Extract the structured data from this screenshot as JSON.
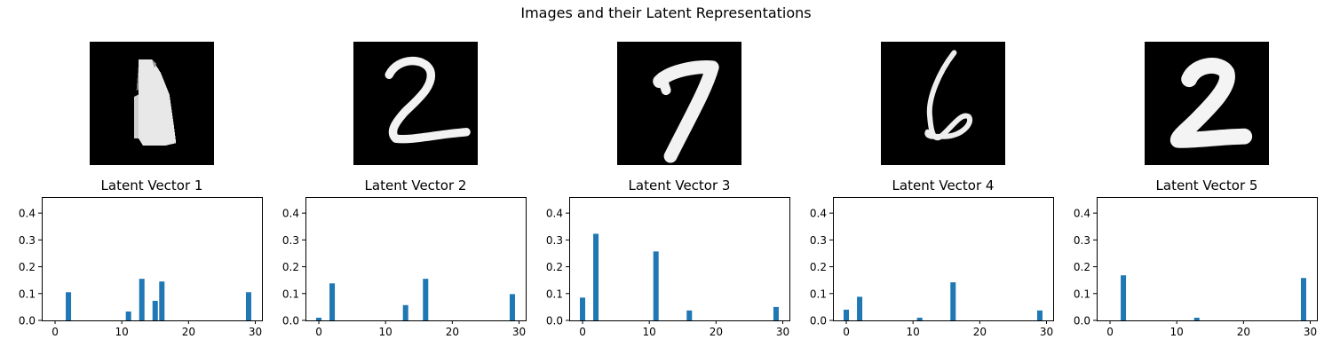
{
  "figure": {
    "title": "Images and their Latent Representations",
    "colors": {
      "bar": "#1f77b4",
      "axis": "#000000",
      "image_bg": "#000000",
      "ink": "#ffffff"
    },
    "images": [
      {
        "name": "digit-image-1",
        "depicts": "1",
        "icon": "digit-1-image"
      },
      {
        "name": "digit-image-2",
        "depicts": "2",
        "icon": "digit-2-image"
      },
      {
        "name": "digit-image-3",
        "depicts": "7",
        "icon": "digit-7-image"
      },
      {
        "name": "digit-image-4",
        "depicts": "6",
        "icon": "digit-6-image"
      },
      {
        "name": "digit-image-5",
        "depicts": "2",
        "icon": "digit-2-image"
      }
    ]
  },
  "chart_data": [
    {
      "type": "bar",
      "title": "Latent Vector 1",
      "xlabel": "",
      "ylabel": "",
      "xlim": [
        -2,
        31
      ],
      "ylim": [
        0,
        0.46
      ],
      "xticks": [
        0,
        10,
        20,
        30
      ],
      "yticks": [
        0.0,
        0.1,
        0.2,
        0.3,
        0.4
      ],
      "grid": false,
      "bars": [
        {
          "x": 2,
          "value": 0.105
        },
        {
          "x": 11,
          "value": 0.033
        },
        {
          "x": 13,
          "value": 0.155
        },
        {
          "x": 15,
          "value": 0.073
        },
        {
          "x": 16,
          "value": 0.145
        },
        {
          "x": 29,
          "value": 0.105
        }
      ]
    },
    {
      "type": "bar",
      "title": "Latent Vector 2",
      "xlabel": "",
      "ylabel": "",
      "xlim": [
        -2,
        31
      ],
      "ylim": [
        0,
        0.46
      ],
      "xticks": [
        0,
        10,
        20,
        30
      ],
      "yticks": [
        0.0,
        0.1,
        0.2,
        0.3,
        0.4
      ],
      "grid": false,
      "bars": [
        {
          "x": 0,
          "value": 0.01
        },
        {
          "x": 2,
          "value": 0.138
        },
        {
          "x": 13,
          "value": 0.057
        },
        {
          "x": 16,
          "value": 0.155
        },
        {
          "x": 29,
          "value": 0.098
        }
      ]
    },
    {
      "type": "bar",
      "title": "Latent Vector 3",
      "xlabel": "",
      "ylabel": "",
      "xlim": [
        -2,
        31
      ],
      "ylim": [
        0,
        0.46
      ],
      "xticks": [
        0,
        10,
        20,
        30
      ],
      "yticks": [
        0.0,
        0.1,
        0.2,
        0.3,
        0.4
      ],
      "grid": false,
      "bars": [
        {
          "x": 0,
          "value": 0.085
        },
        {
          "x": 2,
          "value": 0.323
        },
        {
          "x": 11,
          "value": 0.257
        },
        {
          "x": 16,
          "value": 0.037
        },
        {
          "x": 29,
          "value": 0.05
        }
      ]
    },
    {
      "type": "bar",
      "title": "Latent Vector 4",
      "xlabel": "",
      "ylabel": "",
      "xlim": [
        -2,
        31
      ],
      "ylim": [
        0,
        0.46
      ],
      "xticks": [
        0,
        10,
        20,
        30
      ],
      "yticks": [
        0.0,
        0.1,
        0.2,
        0.3,
        0.4
      ],
      "grid": false,
      "bars": [
        {
          "x": 0,
          "value": 0.04
        },
        {
          "x": 2,
          "value": 0.088
        },
        {
          "x": 11,
          "value": 0.01
        },
        {
          "x": 16,
          "value": 0.142
        },
        {
          "x": 29,
          "value": 0.037
        }
      ]
    },
    {
      "type": "bar",
      "title": "Latent Vector 5",
      "xlabel": "",
      "ylabel": "",
      "xlim": [
        -2,
        31
      ],
      "ylim": [
        0,
        0.46
      ],
      "xticks": [
        0,
        10,
        20,
        30
      ],
      "yticks": [
        0.0,
        0.1,
        0.2,
        0.3,
        0.4
      ],
      "grid": false,
      "bars": [
        {
          "x": 2,
          "value": 0.168
        },
        {
          "x": 13,
          "value": 0.01
        },
        {
          "x": 29,
          "value": 0.158
        }
      ]
    }
  ]
}
